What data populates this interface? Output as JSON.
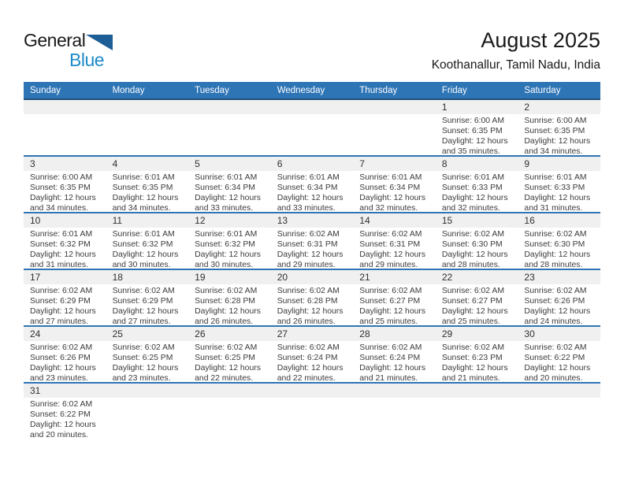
{
  "logo": {
    "part1": "General",
    "part2": "Blue"
  },
  "header": {
    "title": "August 2025",
    "subtitle": "Koothanallur, Tamil Nadu, India"
  },
  "colors": {
    "header_bg": "#2E75B6",
    "header_border": "#1F4E79",
    "week_divider": "#2E75B6",
    "day_band_bg": "#F0F0F0",
    "logo_blue_text": "#1E8BC9",
    "logo_triangle": "#1E5E96"
  },
  "calendar": {
    "day_headers": [
      "Sunday",
      "Monday",
      "Tuesday",
      "Wednesday",
      "Thursday",
      "Friday",
      "Saturday"
    ],
    "weeks": [
      [
        null,
        null,
        null,
        null,
        null,
        {
          "day": "1",
          "lines": [
            "Sunrise: 6:00 AM",
            "Sunset: 6:35 PM",
            "Daylight: 12 hours",
            "and 35 minutes."
          ]
        },
        {
          "day": "2",
          "lines": [
            "Sunrise: 6:00 AM",
            "Sunset: 6:35 PM",
            "Daylight: 12 hours",
            "and 34 minutes."
          ]
        }
      ],
      [
        {
          "day": "3",
          "lines": [
            "Sunrise: 6:00 AM",
            "Sunset: 6:35 PM",
            "Daylight: 12 hours",
            "and 34 minutes."
          ]
        },
        {
          "day": "4",
          "lines": [
            "Sunrise: 6:01 AM",
            "Sunset: 6:35 PM",
            "Daylight: 12 hours",
            "and 34 minutes."
          ]
        },
        {
          "day": "5",
          "lines": [
            "Sunrise: 6:01 AM",
            "Sunset: 6:34 PM",
            "Daylight: 12 hours",
            "and 33 minutes."
          ]
        },
        {
          "day": "6",
          "lines": [
            "Sunrise: 6:01 AM",
            "Sunset: 6:34 PM",
            "Daylight: 12 hours",
            "and 33 minutes."
          ]
        },
        {
          "day": "7",
          "lines": [
            "Sunrise: 6:01 AM",
            "Sunset: 6:34 PM",
            "Daylight: 12 hours",
            "and 32 minutes."
          ]
        },
        {
          "day": "8",
          "lines": [
            "Sunrise: 6:01 AM",
            "Sunset: 6:33 PM",
            "Daylight: 12 hours",
            "and 32 minutes."
          ]
        },
        {
          "day": "9",
          "lines": [
            "Sunrise: 6:01 AM",
            "Sunset: 6:33 PM",
            "Daylight: 12 hours",
            "and 31 minutes."
          ]
        }
      ],
      [
        {
          "day": "10",
          "lines": [
            "Sunrise: 6:01 AM",
            "Sunset: 6:32 PM",
            "Daylight: 12 hours",
            "and 31 minutes."
          ]
        },
        {
          "day": "11",
          "lines": [
            "Sunrise: 6:01 AM",
            "Sunset: 6:32 PM",
            "Daylight: 12 hours",
            "and 30 minutes."
          ]
        },
        {
          "day": "12",
          "lines": [
            "Sunrise: 6:01 AM",
            "Sunset: 6:32 PM",
            "Daylight: 12 hours",
            "and 30 minutes."
          ]
        },
        {
          "day": "13",
          "lines": [
            "Sunrise: 6:02 AM",
            "Sunset: 6:31 PM",
            "Daylight: 12 hours",
            "and 29 minutes."
          ]
        },
        {
          "day": "14",
          "lines": [
            "Sunrise: 6:02 AM",
            "Sunset: 6:31 PM",
            "Daylight: 12 hours",
            "and 29 minutes."
          ]
        },
        {
          "day": "15",
          "lines": [
            "Sunrise: 6:02 AM",
            "Sunset: 6:30 PM",
            "Daylight: 12 hours",
            "and 28 minutes."
          ]
        },
        {
          "day": "16",
          "lines": [
            "Sunrise: 6:02 AM",
            "Sunset: 6:30 PM",
            "Daylight: 12 hours",
            "and 28 minutes."
          ]
        }
      ],
      [
        {
          "day": "17",
          "lines": [
            "Sunrise: 6:02 AM",
            "Sunset: 6:29 PM",
            "Daylight: 12 hours",
            "and 27 minutes."
          ]
        },
        {
          "day": "18",
          "lines": [
            "Sunrise: 6:02 AM",
            "Sunset: 6:29 PM",
            "Daylight: 12 hours",
            "and 27 minutes."
          ]
        },
        {
          "day": "19",
          "lines": [
            "Sunrise: 6:02 AM",
            "Sunset: 6:28 PM",
            "Daylight: 12 hours",
            "and 26 minutes."
          ]
        },
        {
          "day": "20",
          "lines": [
            "Sunrise: 6:02 AM",
            "Sunset: 6:28 PM",
            "Daylight: 12 hours",
            "and 26 minutes."
          ]
        },
        {
          "day": "21",
          "lines": [
            "Sunrise: 6:02 AM",
            "Sunset: 6:27 PM",
            "Daylight: 12 hours",
            "and 25 minutes."
          ]
        },
        {
          "day": "22",
          "lines": [
            "Sunrise: 6:02 AM",
            "Sunset: 6:27 PM",
            "Daylight: 12 hours",
            "and 25 minutes."
          ]
        },
        {
          "day": "23",
          "lines": [
            "Sunrise: 6:02 AM",
            "Sunset: 6:26 PM",
            "Daylight: 12 hours",
            "and 24 minutes."
          ]
        }
      ],
      [
        {
          "day": "24",
          "lines": [
            "Sunrise: 6:02 AM",
            "Sunset: 6:26 PM",
            "Daylight: 12 hours",
            "and 23 minutes."
          ]
        },
        {
          "day": "25",
          "lines": [
            "Sunrise: 6:02 AM",
            "Sunset: 6:25 PM",
            "Daylight: 12 hours",
            "and 23 minutes."
          ]
        },
        {
          "day": "26",
          "lines": [
            "Sunrise: 6:02 AM",
            "Sunset: 6:25 PM",
            "Daylight: 12 hours",
            "and 22 minutes."
          ]
        },
        {
          "day": "27",
          "lines": [
            "Sunrise: 6:02 AM",
            "Sunset: 6:24 PM",
            "Daylight: 12 hours",
            "and 22 minutes."
          ]
        },
        {
          "day": "28",
          "lines": [
            "Sunrise: 6:02 AM",
            "Sunset: 6:24 PM",
            "Daylight: 12 hours",
            "and 21 minutes."
          ]
        },
        {
          "day": "29",
          "lines": [
            "Sunrise: 6:02 AM",
            "Sunset: 6:23 PM",
            "Daylight: 12 hours",
            "and 21 minutes."
          ]
        },
        {
          "day": "30",
          "lines": [
            "Sunrise: 6:02 AM",
            "Sunset: 6:22 PM",
            "Daylight: 12 hours",
            "and 20 minutes."
          ]
        }
      ],
      [
        {
          "day": "31",
          "lines": [
            "Sunrise: 6:02 AM",
            "Sunset: 6:22 PM",
            "Daylight: 12 hours",
            "and 20 minutes."
          ]
        },
        null,
        null,
        null,
        null,
        null,
        null
      ]
    ]
  }
}
